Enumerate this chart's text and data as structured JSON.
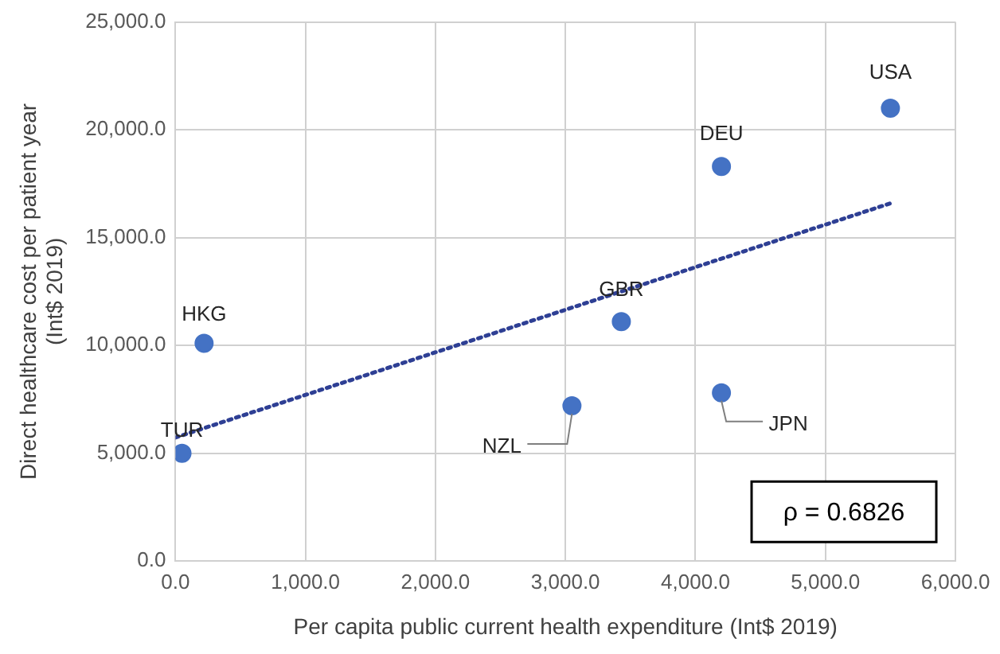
{
  "chart_data": {
    "type": "scatter",
    "xlabel": "Per capita public current health expenditure (Int$ 2019)",
    "ylabel": "Direct healthcare cost per patient year (Int$ 2019)",
    "xlim": [
      0,
      6000
    ],
    "ylim": [
      0,
      25000
    ],
    "xticks": [
      {
        "value": 0,
        "label": "0.0"
      },
      {
        "value": 1000,
        "label": "1,000.0"
      },
      {
        "value": 2000,
        "label": "2,000.0"
      },
      {
        "value": 3000,
        "label": "3,000.0"
      },
      {
        "value": 4000,
        "label": "4,000.0"
      },
      {
        "value": 5000,
        "label": "5,000.0"
      },
      {
        "value": 6000,
        "label": "6,000.0"
      }
    ],
    "yticks": [
      {
        "value": 0,
        "label": "0.0"
      },
      {
        "value": 5000,
        "label": "5,000.0"
      },
      {
        "value": 10000,
        "label": "10,000.0"
      },
      {
        "value": 15000,
        "label": "15,000.0"
      },
      {
        "value": 20000,
        "label": "20,000.0"
      },
      {
        "value": 25000,
        "label": "25,000.0"
      }
    ],
    "grid": true,
    "legend": false,
    "marker": "circle",
    "series": [
      {
        "color": "#4472c4",
        "x": [
          50,
          220,
          3050,
          3430,
          4200,
          4200,
          5500
        ],
        "values": [
          5000,
          10100,
          7200,
          11100,
          18300,
          7800,
          21000
        ],
        "value_labels": [
          "TUR",
          "HKG",
          "NZL",
          "GBR",
          "DEU",
          "JPN",
          "USA"
        ]
      },
      {
        "type": "line",
        "color": "#2e3f94",
        "line_style": "dotted",
        "marker": "none",
        "x": [
          0,
          5500
        ],
        "values": [
          5730,
          16590
        ]
      }
    ],
    "annotations": [
      "ρ = 0.6826"
    ]
  }
}
